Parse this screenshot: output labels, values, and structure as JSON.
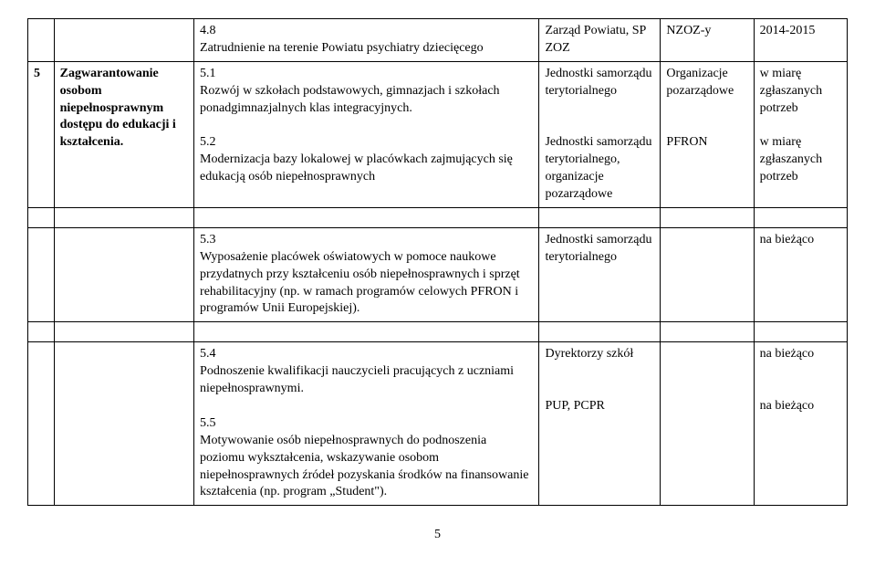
{
  "table": {
    "rows": [
      {
        "num": "",
        "goal": "",
        "desc_num": "4.8",
        "desc_text": "Zatrudnienie na terenie Powiatu psychiatry dziecięcego",
        "resp": "Zarząd Powiatu, SP ZOZ",
        "org": "NZOZ-y",
        "time": "2014-2015"
      },
      {
        "num": "5",
        "goal": "Zagwarantowanie osobom niepełnosprawnym dostępu do edukacji i kształcenia.",
        "desc_num": "5.1",
        "desc_text": "Rozwój w szkołach podstawowych, gimnazjach i szkołach ponadgimnazjalnych klas integracyjnych.",
        "resp": "Jednostki samorządu terytorialnego",
        "org": "Organizacje pozarządowe",
        "time": "w miarę zgłaszanych potrzeb",
        "desc_num2": "5.2",
        "desc_text2": "Modernizacja bazy lokalowej w placówkach zajmujących się edukacją osób niepełnosprawnych",
        "resp2": "Jednostki samorządu terytorialnego, organizacje pozarządowe",
        "org2": "PFRON",
        "time2": "w miarę zgłaszanych potrzeb"
      },
      {
        "num": "",
        "goal": "",
        "desc_num": "5.3",
        "desc_text": "Wyposażenie placówek oświatowych w pomoce naukowe przydatnych przy kształceniu osób niepełnosprawnych i sprzęt rehabilitacyjny (np. w ramach programów celowych PFRON i programów Unii Europejskiej).",
        "resp": "Jednostki samorządu terytorialnego",
        "org": "",
        "time": "na bieżąco"
      },
      {
        "num": "",
        "goal": "",
        "desc_num": "5.4",
        "desc_text": "Podnoszenie kwalifikacji nauczycieli pracujących z uczniami niepełnosprawnymi.",
        "resp": "Dyrektorzy szkół",
        "org": "",
        "time": "na bieżąco",
        "desc_num2": "5.5",
        "desc_text2": "Motywowanie osób niepełnosprawnych do podnoszenia poziomu wykształcenia, wskazywanie osobom niepełnosprawnych źródeł pozyskania środków na finansowanie kształcenia (np. program „Student\").",
        "resp2": "PUP, PCPR",
        "org2": "",
        "time2": "na bieżąco"
      }
    ]
  },
  "page_number": "5"
}
